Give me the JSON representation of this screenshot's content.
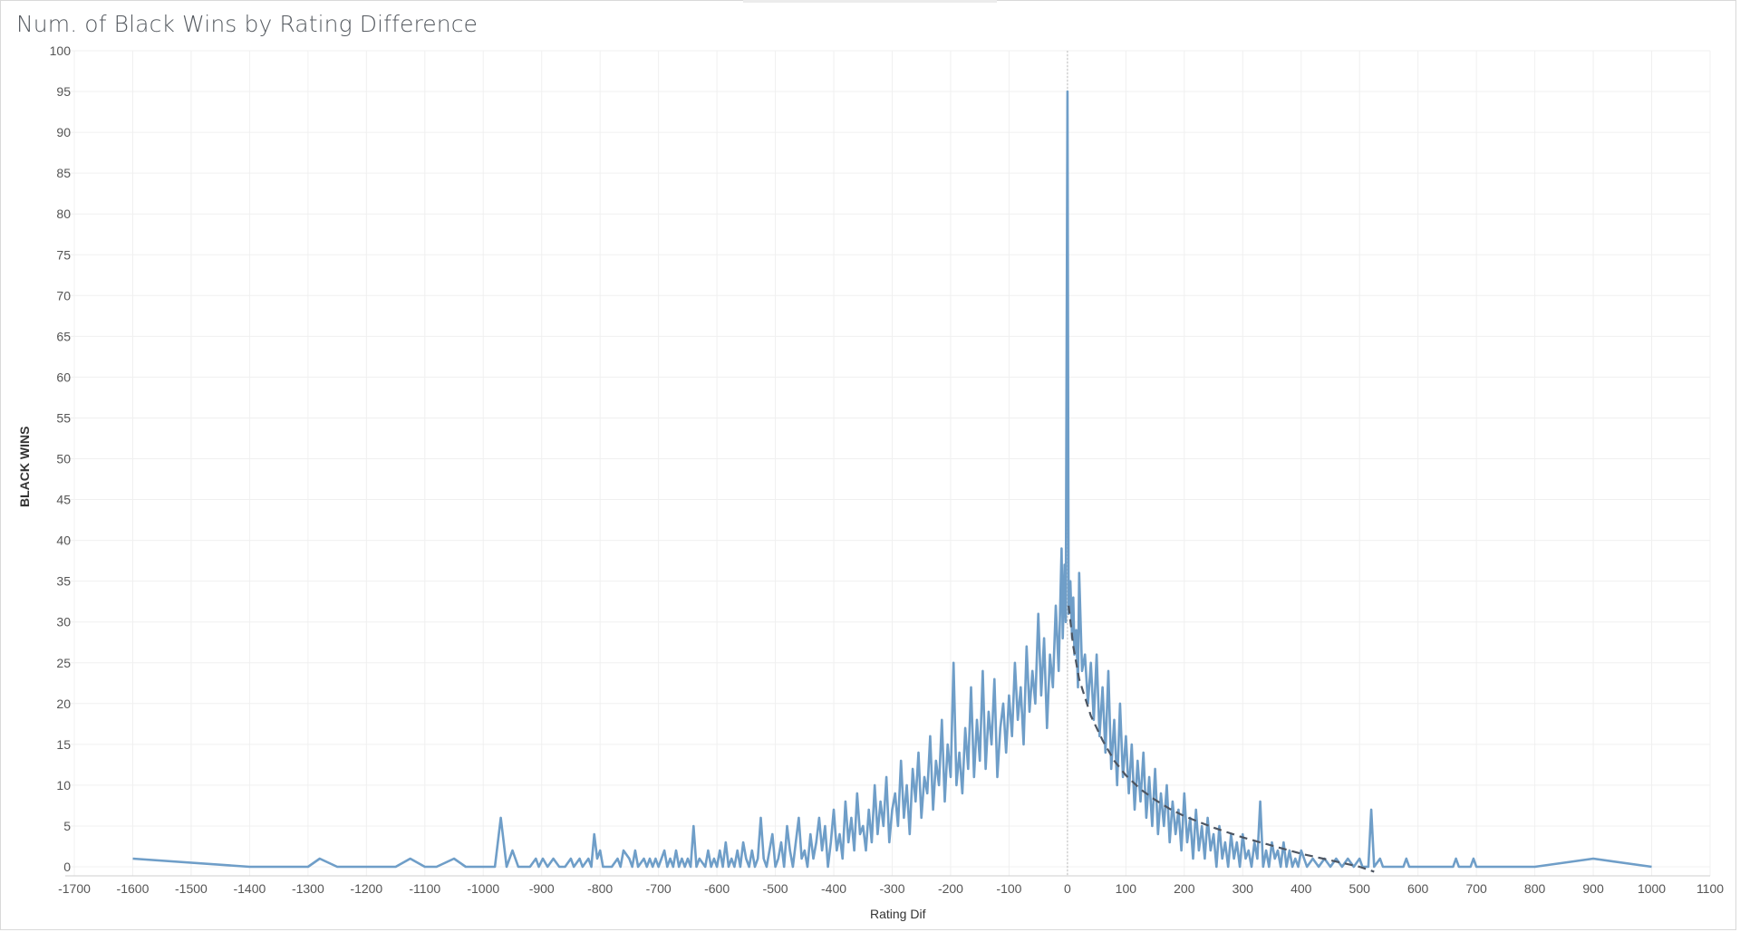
{
  "chart_data": {
    "type": "line",
    "title": "Num. of Black Wins by Rating Difference",
    "xlabel": "Rating Dif",
    "ylabel": "BLACK WINS",
    "xlim": [
      -1700,
      1100
    ],
    "ylim": [
      0,
      100
    ],
    "x_ticks": [
      -1700,
      -1600,
      -1500,
      -1400,
      -1300,
      -1200,
      -1100,
      -1000,
      -900,
      -800,
      -700,
      -600,
      -500,
      -400,
      -300,
      -200,
      -100,
      0,
      100,
      200,
      300,
      400,
      500,
      600,
      700,
      800,
      900,
      1000,
      1100
    ],
    "y_ticks": [
      0,
      5,
      10,
      15,
      20,
      25,
      30,
      35,
      40,
      45,
      50,
      55,
      60,
      65,
      70,
      75,
      80,
      85,
      90,
      95,
      100
    ],
    "grid": true,
    "reference_line_x": 0,
    "series": [
      {
        "color": "#6f9ec8",
        "points": [
          [
            -1600,
            1
          ],
          [
            -1400,
            0
          ],
          [
            -1300,
            0
          ],
          [
            -1280,
            1
          ],
          [
            -1250,
            0
          ],
          [
            -1200,
            0
          ],
          [
            -1150,
            0
          ],
          [
            -1125,
            1
          ],
          [
            -1100,
            0
          ],
          [
            -1080,
            0
          ],
          [
            -1050,
            1
          ],
          [
            -1030,
            0
          ],
          [
            -1000,
            0
          ],
          [
            -980,
            0
          ],
          [
            -970,
            6
          ],
          [
            -960,
            0
          ],
          [
            -950,
            2
          ],
          [
            -940,
            0
          ],
          [
            -920,
            0
          ],
          [
            -910,
            1
          ],
          [
            -905,
            0
          ],
          [
            -898,
            1
          ],
          [
            -890,
            0
          ],
          [
            -880,
            1
          ],
          [
            -870,
            0
          ],
          [
            -860,
            0
          ],
          [
            -850,
            1
          ],
          [
            -845,
            0
          ],
          [
            -835,
            1
          ],
          [
            -830,
            0
          ],
          [
            -820,
            1
          ],
          [
            -815,
            0
          ],
          [
            -810,
            4
          ],
          [
            -805,
            1
          ],
          [
            -800,
            2
          ],
          [
            -795,
            0
          ],
          [
            -780,
            0
          ],
          [
            -770,
            1
          ],
          [
            -765,
            0
          ],
          [
            -760,
            2
          ],
          [
            -750,
            1
          ],
          [
            -745,
            0
          ],
          [
            -740,
            2
          ],
          [
            -735,
            0
          ],
          [
            -725,
            1
          ],
          [
            -720,
            0
          ],
          [
            -715,
            1
          ],
          [
            -710,
            0
          ],
          [
            -705,
            1
          ],
          [
            -700,
            0
          ],
          [
            -695,
            1
          ],
          [
            -690,
            2
          ],
          [
            -685,
            0
          ],
          [
            -680,
            1
          ],
          [
            -675,
            0
          ],
          [
            -670,
            2
          ],
          [
            -665,
            0
          ],
          [
            -660,
            1
          ],
          [
            -655,
            0
          ],
          [
            -650,
            1
          ],
          [
            -645,
            0
          ],
          [
            -640,
            5
          ],
          [
            -635,
            0
          ],
          [
            -630,
            1
          ],
          [
            -620,
            0
          ],
          [
            -615,
            2
          ],
          [
            -610,
            0
          ],
          [
            -605,
            1
          ],
          [
            -600,
            0
          ],
          [
            -595,
            2
          ],
          [
            -590,
            0
          ],
          [
            -585,
            3
          ],
          [
            -580,
            0
          ],
          [
            -575,
            1
          ],
          [
            -570,
            0
          ],
          [
            -565,
            2
          ],
          [
            -560,
            0
          ],
          [
            -555,
            3
          ],
          [
            -550,
            1
          ],
          [
            -545,
            0
          ],
          [
            -540,
            2
          ],
          [
            -535,
            0
          ],
          [
            -530,
            1
          ],
          [
            -525,
            6
          ],
          [
            -520,
            1
          ],
          [
            -515,
            0
          ],
          [
            -510,
            2
          ],
          [
            -505,
            4
          ],
          [
            -500,
            0
          ],
          [
            -495,
            1
          ],
          [
            -490,
            3
          ],
          [
            -485,
            0
          ],
          [
            -480,
            5
          ],
          [
            -475,
            2
          ],
          [
            -470,
            0
          ],
          [
            -465,
            3
          ],
          [
            -460,
            6
          ],
          [
            -455,
            1
          ],
          [
            -450,
            2
          ],
          [
            -445,
            0
          ],
          [
            -440,
            4
          ],
          [
            -435,
            1
          ],
          [
            -430,
            3
          ],
          [
            -425,
            6
          ],
          [
            -420,
            2
          ],
          [
            -415,
            5
          ],
          [
            -410,
            0
          ],
          [
            -405,
            3
          ],
          [
            -400,
            7
          ],
          [
            -395,
            2
          ],
          [
            -390,
            4
          ],
          [
            -385,
            1
          ],
          [
            -380,
            8
          ],
          [
            -375,
            3
          ],
          [
            -370,
            6
          ],
          [
            -365,
            2
          ],
          [
            -360,
            9
          ],
          [
            -355,
            4
          ],
          [
            -350,
            5
          ],
          [
            -345,
            2
          ],
          [
            -340,
            7
          ],
          [
            -335,
            3
          ],
          [
            -330,
            10
          ],
          [
            -325,
            4
          ],
          [
            -320,
            8
          ],
          [
            -315,
            5
          ],
          [
            -310,
            11
          ],
          [
            -305,
            3
          ],
          [
            -300,
            7
          ],
          [
            -295,
            9
          ],
          [
            -290,
            5
          ],
          [
            -285,
            13
          ],
          [
            -280,
            6
          ],
          [
            -275,
            10
          ],
          [
            -270,
            4
          ],
          [
            -265,
            12
          ],
          [
            -260,
            8
          ],
          [
            -255,
            14
          ],
          [
            -250,
            6
          ],
          [
            -245,
            11
          ],
          [
            -240,
            9
          ],
          [
            -235,
            16
          ],
          [
            -230,
            7
          ],
          [
            -225,
            13
          ],
          [
            -220,
            10
          ],
          [
            -215,
            18
          ],
          [
            -210,
            8
          ],
          [
            -205,
            15
          ],
          [
            -200,
            11
          ],
          [
            -195,
            25
          ],
          [
            -190,
            10
          ],
          [
            -185,
            14
          ],
          [
            -180,
            9
          ],
          [
            -175,
            17
          ],
          [
            -170,
            12
          ],
          [
            -165,
            22
          ],
          [
            -160,
            11
          ],
          [
            -155,
            18
          ],
          [
            -150,
            13
          ],
          [
            -145,
            24
          ],
          [
            -140,
            12
          ],
          [
            -135,
            19
          ],
          [
            -130,
            15
          ],
          [
            -125,
            23
          ],
          [
            -120,
            11
          ],
          [
            -115,
            17
          ],
          [
            -110,
            20
          ],
          [
            -105,
            14
          ],
          [
            -100,
            21
          ],
          [
            -95,
            16
          ],
          [
            -90,
            25
          ],
          [
            -85,
            18
          ],
          [
            -80,
            22
          ],
          [
            -75,
            15
          ],
          [
            -70,
            27
          ],
          [
            -65,
            19
          ],
          [
            -60,
            24
          ],
          [
            -55,
            20
          ],
          [
            -50,
            31
          ],
          [
            -45,
            21
          ],
          [
            -40,
            28
          ],
          [
            -35,
            17
          ],
          [
            -30,
            26
          ],
          [
            -25,
            22
          ],
          [
            -20,
            32
          ],
          [
            -15,
            24
          ],
          [
            -10,
            39
          ],
          [
            -8,
            28
          ],
          [
            -5,
            37
          ],
          [
            -3,
            30
          ],
          [
            0,
            95
          ],
          [
            2,
            31
          ],
          [
            5,
            35
          ],
          [
            8,
            28
          ],
          [
            10,
            33
          ],
          [
            12,
            26
          ],
          [
            15,
            29
          ],
          [
            18,
            22
          ],
          [
            20,
            36
          ],
          [
            25,
            24
          ],
          [
            30,
            26
          ],
          [
            35,
            20
          ],
          [
            40,
            25
          ],
          [
            45,
            18
          ],
          [
            50,
            26
          ],
          [
            55,
            16
          ],
          [
            60,
            22
          ],
          [
            65,
            14
          ],
          [
            70,
            24
          ],
          [
            75,
            12
          ],
          [
            80,
            18
          ],
          [
            85,
            10
          ],
          [
            90,
            20
          ],
          [
            95,
            11
          ],
          [
            100,
            16
          ],
          [
            105,
            9
          ],
          [
            110,
            15
          ],
          [
            115,
            7
          ],
          [
            120,
            13
          ],
          [
            125,
            8
          ],
          [
            130,
            14
          ],
          [
            135,
            6
          ],
          [
            140,
            11
          ],
          [
            145,
            5
          ],
          [
            150,
            12
          ],
          [
            155,
            4
          ],
          [
            160,
            9
          ],
          [
            165,
            5
          ],
          [
            170,
            10
          ],
          [
            175,
            3
          ],
          [
            180,
            8
          ],
          [
            185,
            4
          ],
          [
            190,
            7
          ],
          [
            195,
            2
          ],
          [
            200,
            9
          ],
          [
            205,
            3
          ],
          [
            210,
            6
          ],
          [
            215,
            1
          ],
          [
            220,
            7
          ],
          [
            225,
            2
          ],
          [
            230,
            5
          ],
          [
            235,
            1
          ],
          [
            240,
            6
          ],
          [
            245,
            2
          ],
          [
            250,
            4
          ],
          [
            255,
            0
          ],
          [
            260,
            5
          ],
          [
            265,
            1
          ],
          [
            270,
            3
          ],
          [
            275,
            0
          ],
          [
            280,
            4
          ],
          [
            285,
            1
          ],
          [
            290,
            3
          ],
          [
            295,
            0
          ],
          [
            300,
            4
          ],
          [
            305,
            1
          ],
          [
            310,
            2
          ],
          [
            315,
            0
          ],
          [
            320,
            3
          ],
          [
            325,
            1
          ],
          [
            330,
            8
          ],
          [
            335,
            0
          ],
          [
            340,
            2
          ],
          [
            345,
            0
          ],
          [
            350,
            3
          ],
          [
            355,
            1
          ],
          [
            360,
            2
          ],
          [
            365,
            0
          ],
          [
            370,
            3
          ],
          [
            375,
            0
          ],
          [
            380,
            2
          ],
          [
            385,
            0
          ],
          [
            390,
            1
          ],
          [
            395,
            0
          ],
          [
            400,
            2
          ],
          [
            410,
            0
          ],
          [
            420,
            1
          ],
          [
            430,
            0
          ],
          [
            440,
            1
          ],
          [
            450,
            0
          ],
          [
            460,
            1
          ],
          [
            470,
            0
          ],
          [
            480,
            1
          ],
          [
            490,
            0
          ],
          [
            500,
            1
          ],
          [
            505,
            0
          ],
          [
            515,
            0
          ],
          [
            520,
            7
          ],
          [
            525,
            0
          ],
          [
            535,
            1
          ],
          [
            540,
            0
          ],
          [
            575,
            0
          ],
          [
            580,
            1
          ],
          [
            585,
            0
          ],
          [
            660,
            0
          ],
          [
            665,
            1
          ],
          [
            670,
            0
          ],
          [
            690,
            0
          ],
          [
            695,
            1
          ],
          [
            700,
            0
          ],
          [
            800,
            0
          ],
          [
            900,
            1
          ],
          [
            1000,
            0
          ]
        ]
      }
    ],
    "trend_line": {
      "style": "dashed",
      "color": "#4d5561",
      "points": [
        [
          2,
          32
        ],
        [
          10,
          27
        ],
        [
          20,
          23
        ],
        [
          40,
          18.5
        ],
        [
          60,
          15.5
        ],
        [
          80,
          13
        ],
        [
          100,
          11.2
        ],
        [
          125,
          9.5
        ],
        [
          150,
          8.2
        ],
        [
          175,
          7.1
        ],
        [
          200,
          6.2
        ],
        [
          250,
          4.8
        ],
        [
          300,
          3.6
        ],
        [
          350,
          2.6
        ],
        [
          400,
          1.6
        ],
        [
          450,
          0.8
        ],
        [
          500,
          0
        ],
        [
          525,
          -0.6
        ]
      ]
    }
  }
}
